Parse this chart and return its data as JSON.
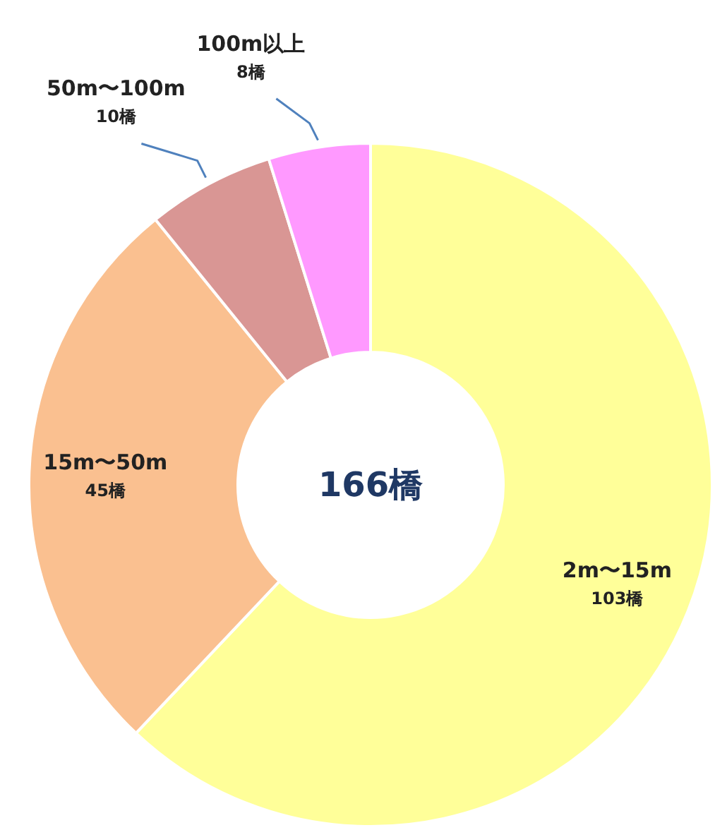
{
  "chart_data": {
    "type": "donut",
    "categories": [
      "2m〜15m",
      "15m〜50m",
      "50m〜100m",
      "100m以上"
    ],
    "values": [
      103,
      45,
      10,
      8
    ],
    "value_labels": [
      "103橋",
      "45橋",
      "10橋",
      "8橋"
    ],
    "colors": [
      "#ffff99",
      "#fac090",
      "#d99694",
      "#ff99ff"
    ],
    "annotations": [
      "166橋"
    ]
  }
}
